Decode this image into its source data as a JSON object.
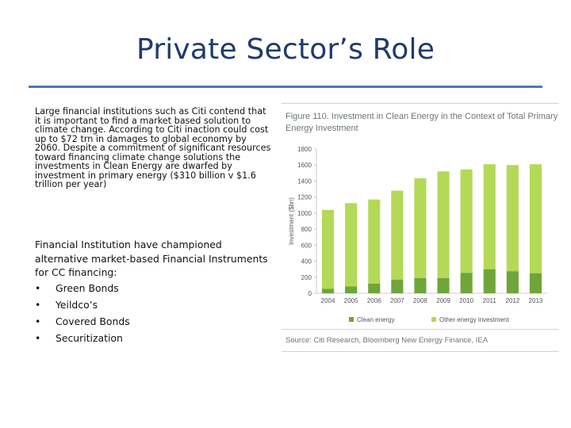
{
  "slide": {
    "title": "Private Sector’s Role",
    "paragraph1": "Large financial institutions such as Citi contend that it is important to find a market based solution to climate change. According to Citi inaction could cost up to $72 trn in damages to global economy by 2060. Despite a commitment of significant resources toward financing climate change solutions the investments in Clean Energy are dwarfed by investment in primary energy ($310 billion v $1.6 trillion per year)",
    "paragraph2_intro": "Financial Institution have championed alternative market-based Financial Instruments for CC financing:",
    "bullet_glyph": "•",
    "bullets": [
      "Green Bonds",
      "Yeildco’s",
      "Covered Bonds",
      "Securitization"
    ]
  },
  "colors": {
    "title": "#1f3a6e",
    "rule": "#4f7bb2",
    "clean": "#6fa53a",
    "other": "#b4d957"
  },
  "chart_data": {
    "type": "bar",
    "stacked": true,
    "title": "Figure 110. Investment in Clean Energy in the Context of Total Primary Energy Investment",
    "ylabel": "Investment ($bn)",
    "xlabel": "",
    "ylim": [
      0,
      1800
    ],
    "yticks": [
      0,
      200,
      400,
      600,
      800,
      1000,
      1200,
      1400,
      1600,
      1800
    ],
    "categories": [
      "2004",
      "2005",
      "2006",
      "2007",
      "2008",
      "2009",
      "2010",
      "2011",
      "2012",
      "2013"
    ],
    "series": [
      {
        "name": "Clean energy",
        "values": [
          55,
          85,
          120,
          170,
          190,
          190,
          255,
          300,
          275,
          250
        ]
      },
      {
        "name": "Other energy investment",
        "values": [
          985,
          1040,
          1050,
          1110,
          1245,
          1330,
          1290,
          1310,
          1325,
          1360
        ]
      }
    ],
    "legend_position": "bottom",
    "source": "Source: Citi Research, Bloomberg New Energy Finance, IEA"
  }
}
